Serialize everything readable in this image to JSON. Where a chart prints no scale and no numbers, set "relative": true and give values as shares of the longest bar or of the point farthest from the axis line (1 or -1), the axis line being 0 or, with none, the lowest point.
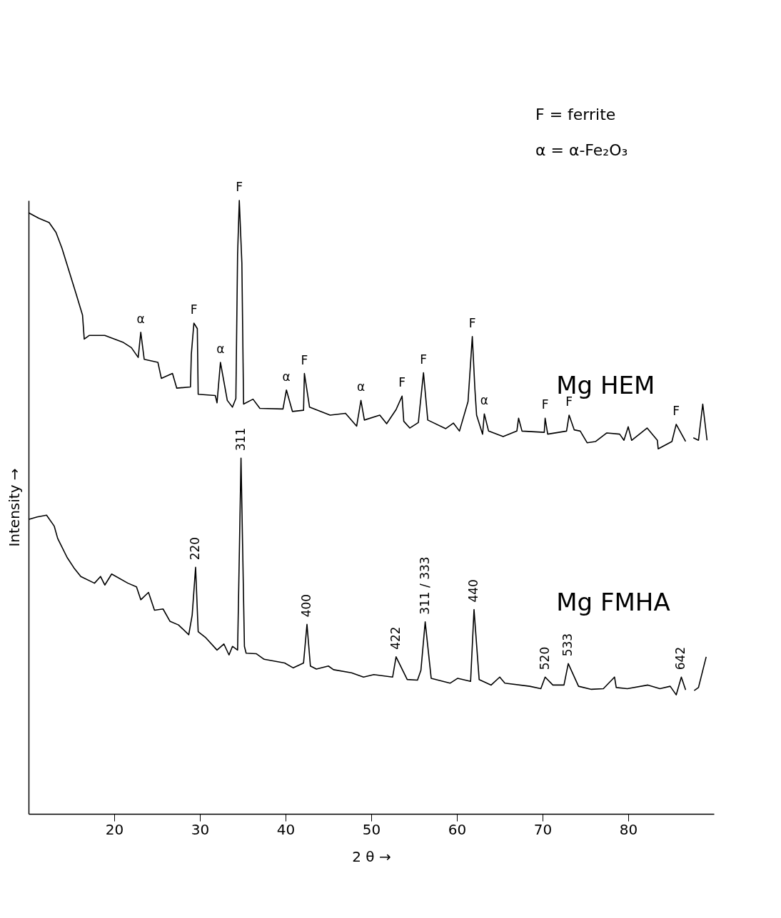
{
  "chart_data": {
    "type": "line",
    "relative": true,
    "xlabel": "2 θ →",
    "ylabel": "Intensity →",
    "xlim": [
      10,
      90
    ],
    "xticks": [
      20,
      30,
      40,
      50,
      60,
      70,
      80
    ],
    "line_style": "solid",
    "series": [
      {
        "name": "Mg HEM",
        "color": "#000000",
        "x": [
          10.0,
          11.2,
          12.4,
          13.2,
          13.9,
          15.5,
          16.3,
          16.5,
          17.1,
          18.9,
          21.0,
          22.0,
          22.8,
          23.1,
          23.5,
          25.1,
          25.5,
          26.8,
          27.3,
          28.9,
          29.0,
          29.3,
          29.7,
          29.8,
          31.8,
          32.0,
          32.4,
          33.2,
          33.8,
          34.2,
          34.4,
          34.6,
          34.9,
          35.1,
          36.2,
          37.0,
          39.7,
          40.1,
          40.8,
          42.1,
          42.2,
          42.8,
          45.2,
          47.0,
          48.3,
          48.8,
          49.2,
          51.0,
          51.8,
          52.9,
          53.6,
          53.8,
          54.5,
          55.5,
          56.1,
          56.6,
          58.7,
          59.6,
          60.3,
          61.3,
          61.8,
          62.1,
          62.3,
          63.0,
          63.2,
          63.7,
          65.4,
          67.0,
          67.2,
          67.6,
          70.2,
          70.3,
          70.6,
          72.8,
          73.1,
          73.7,
          74.4,
          75.2,
          76.2,
          77.5,
          79.0,
          79.5,
          80.0,
          80.4,
          82.2,
          83.4,
          83.5,
          85.1,
          85.6,
          86.7,
          87.1,
          87.6,
          88.2,
          88.7,
          89.2
        ],
        "values": [
          0.98,
          0.971,
          0.964,
          0.948,
          0.922,
          0.85,
          0.813,
          0.774,
          0.78,
          0.78,
          0.769,
          0.76,
          0.744,
          0.785,
          0.741,
          0.736,
          0.71,
          0.718,
          0.694,
          0.696,
          0.749,
          0.8,
          0.791,
          0.684,
          0.682,
          0.67,
          0.736,
          0.674,
          0.663,
          0.677,
          0.912,
          1.0,
          0.898,
          0.668,
          0.676,
          0.661,
          0.66,
          0.691,
          0.656,
          0.658,
          0.718,
          0.663,
          0.65,
          0.653,
          0.632,
          0.674,
          0.642,
          0.65,
          0.636,
          0.659,
          0.681,
          0.64,
          0.629,
          0.638,
          0.719,
          0.642,
          0.628,
          0.637,
          0.624,
          0.672,
          0.778,
          0.693,
          0.65,
          0.619,
          0.652,
          0.624,
          0.615,
          0.624,
          0.645,
          0.624,
          0.622,
          0.645,
          0.619,
          0.624,
          0.65,
          0.626,
          0.624,
          0.605,
          0.607,
          0.621,
          0.619,
          0.609,
          0.631,
          0.609,
          0.629,
          0.609,
          0.595,
          0.607,
          0.635,
          0.607,
          null,
          0.613,
          0.609,
          0.668,
          0.609
        ]
      },
      {
        "name": "Mg FMHA",
        "color": "#000000",
        "x": [
          10.0,
          11.0,
          12.1,
          13.0,
          13.4,
          14.5,
          15.3,
          16.1,
          17.7,
          18.4,
          18.9,
          19.7,
          21.6,
          22.6,
          23.1,
          24.0,
          24.7,
          25.7,
          26.5,
          27.5,
          28.7,
          29.1,
          29.5,
          29.8,
          30.7,
          32.0,
          32.8,
          33.4,
          33.8,
          34.4,
          34.5,
          34.8,
          35.2,
          35.4,
          36.6,
          37.5,
          39.9,
          40.9,
          42.1,
          42.5,
          42.9,
          43.6,
          45.0,
          45.6,
          47.7,
          49.1,
          50.3,
          52.5,
          52.9,
          54.2,
          55.4,
          55.8,
          56.3,
          57.0,
          59.2,
          60.1,
          61.6,
          62.0,
          62.6,
          64.0,
          65.0,
          65.6,
          68.5,
          69.8,
          70.3,
          71.2,
          72.5,
          73.0,
          74.2,
          75.7,
          77.1,
          78.4,
          78.6,
          79.9,
          82.3,
          83.7,
          84.9,
          85.6,
          86.2,
          86.7,
          87.2,
          87.7,
          88.2,
          89.1
        ],
        "values": [
          0.48,
          0.484,
          0.487,
          0.469,
          0.449,
          0.418,
          0.401,
          0.387,
          0.376,
          0.387,
          0.373,
          0.391,
          0.376,
          0.37,
          0.349,
          0.361,
          0.332,
          0.334,
          0.314,
          0.308,
          0.292,
          0.324,
          0.402,
          0.297,
          0.287,
          0.267,
          0.277,
          0.259,
          0.273,
          0.267,
          0.342,
          0.58,
          0.273,
          0.262,
          0.261,
          0.252,
          0.246,
          0.238,
          0.246,
          0.309,
          0.241,
          0.236,
          0.241,
          0.235,
          0.23,
          0.223,
          0.227,
          0.223,
          0.256,
          0.219,
          0.218,
          0.234,
          0.313,
          0.221,
          0.213,
          0.221,
          0.216,
          0.333,
          0.219,
          0.21,
          0.223,
          0.213,
          0.208,
          0.204,
          0.223,
          0.21,
          0.21,
          0.245,
          0.208,
          0.203,
          0.204,
          0.223,
          0.206,
          0.204,
          0.21,
          0.204,
          0.208,
          0.194,
          0.223,
          0.202,
          null,
          0.201,
          0.206,
          0.256
        ]
      }
    ],
    "annotations": [
      "F = ferrite",
      "α = α-Fe₂O₃",
      {
        "text": "α",
        "x": 23.1,
        "y": 0.785
      },
      {
        "text": "F",
        "x": 29.3,
        "y": 0.8
      },
      {
        "text": "α",
        "x": 32.4,
        "y": 0.736
      },
      {
        "text": "F",
        "x": 34.6,
        "y": 1.0
      },
      {
        "text": "α",
        "x": 40.1,
        "y": 0.691
      },
      {
        "text": "F",
        "x": 42.2,
        "y": 0.718
      },
      {
        "text": "α",
        "x": 48.8,
        "y": 0.674
      },
      {
        "text": "F",
        "x": 53.6,
        "y": 0.681
      },
      {
        "text": "F",
        "x": 56.1,
        "y": 0.719
      },
      {
        "text": "F",
        "x": 61.8,
        "y": 0.778
      },
      {
        "text": "α",
        "x": 63.2,
        "y": 0.652
      },
      {
        "text": "F",
        "x": 70.3,
        "y": 0.645
      },
      {
        "text": "F",
        "x": 73.1,
        "y": 0.65
      },
      {
        "text": "F",
        "x": 85.6,
        "y": 0.635
      },
      {
        "text": "220",
        "x": 29.5,
        "y": 0.402
      },
      {
        "text": "311",
        "x": 34.8,
        "y": 0.58
      },
      {
        "text": "400",
        "x": 42.5,
        "y": 0.309
      },
      {
        "text": "422",
        "x": 52.9,
        "y": 0.256
      },
      {
        "text": "311 / 333",
        "x": 56.3,
        "y": 0.313
      },
      {
        "text": "440",
        "x": 62.0,
        "y": 0.333
      },
      {
        "text": "520",
        "x": 70.3,
        "y": 0.223
      },
      {
        "text": "533",
        "x": 73.0,
        "y": 0.245
      },
      {
        "text": "642",
        "x": 86.2,
        "y": 0.223
      }
    ]
  }
}
